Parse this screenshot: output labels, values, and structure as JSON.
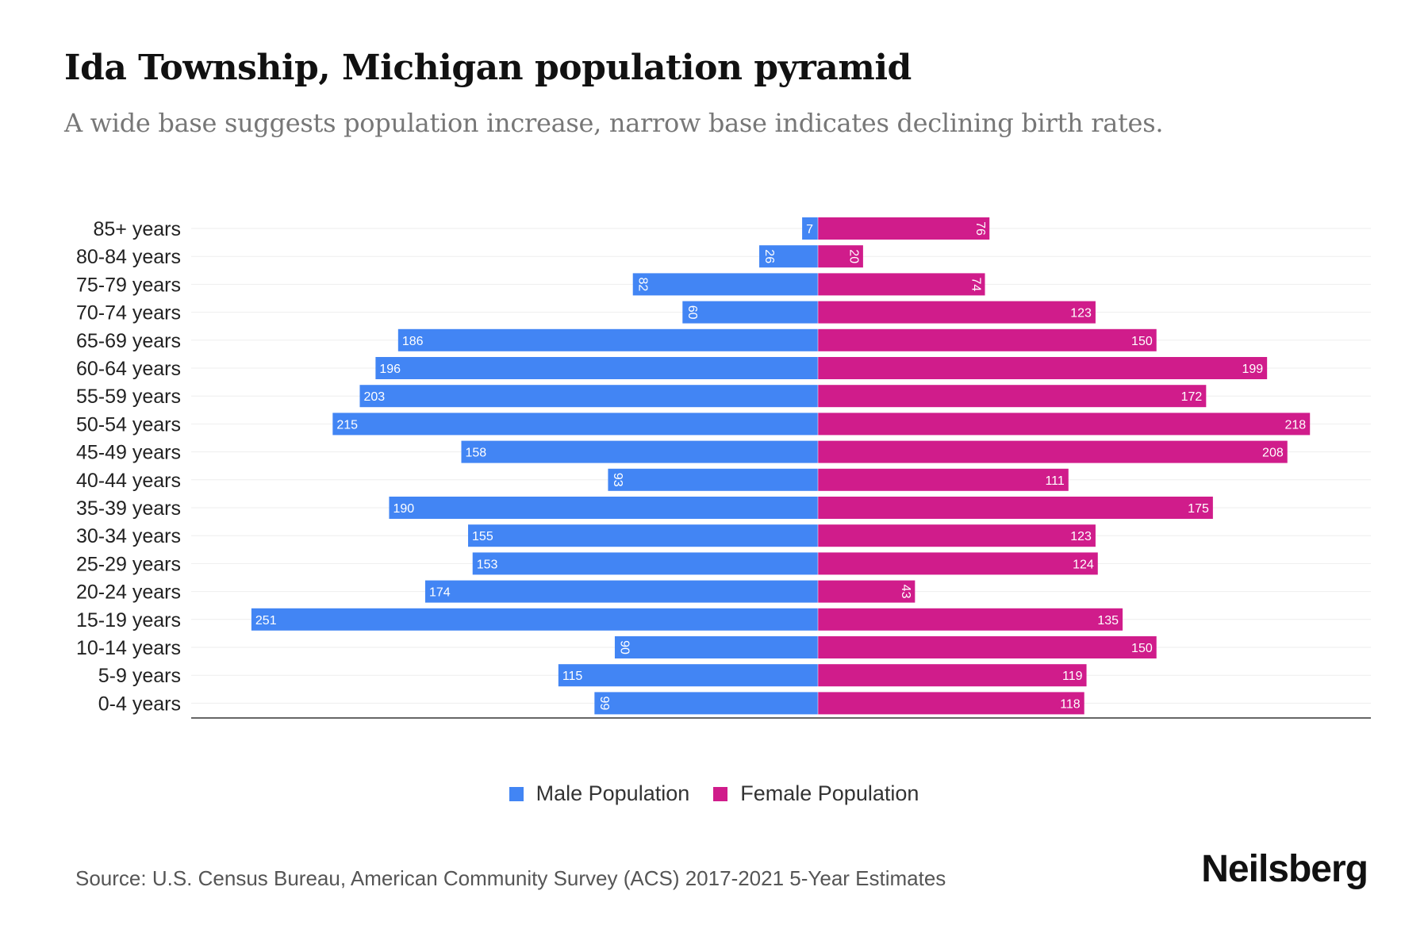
{
  "title": "Ida Township, Michigan population pyramid",
  "subtitle": "A wide base suggests population increase, narrow base indicates declining birth rates.",
  "source": "Source: U.S. Census Bureau, American Community Survey (ACS) 2017-2021 5-Year Estimates",
  "logo": "Neilsberg",
  "colors": {
    "male": "#4285f4",
    "female": "#d01c8b"
  },
  "chart_data": {
    "type": "bar",
    "orientation": "horizontal-pyramid",
    "categories": [
      "85+ years",
      "80-84 years",
      "75-79 years",
      "70-74 years",
      "65-69 years",
      "60-64 years",
      "55-59 years",
      "50-54 years",
      "45-49 years",
      "40-44 years",
      "35-39 years",
      "30-34 years",
      "25-29 years",
      "20-24 years",
      "15-19 years",
      "10-14 years",
      "5-9 years",
      "0-4 years"
    ],
    "series": [
      {
        "name": "Male Population",
        "values": [
          7,
          26,
          82,
          60,
          186,
          196,
          203,
          215,
          158,
          93,
          190,
          155,
          153,
          174,
          251,
          90,
          115,
          99
        ]
      },
      {
        "name": "Female Population",
        "values": [
          76,
          20,
          74,
          123,
          150,
          199,
          172,
          218,
          208,
          111,
          175,
          123,
          124,
          43,
          135,
          150,
          119,
          118
        ]
      }
    ],
    "legend": "bottom-center",
    "grid": true
  }
}
